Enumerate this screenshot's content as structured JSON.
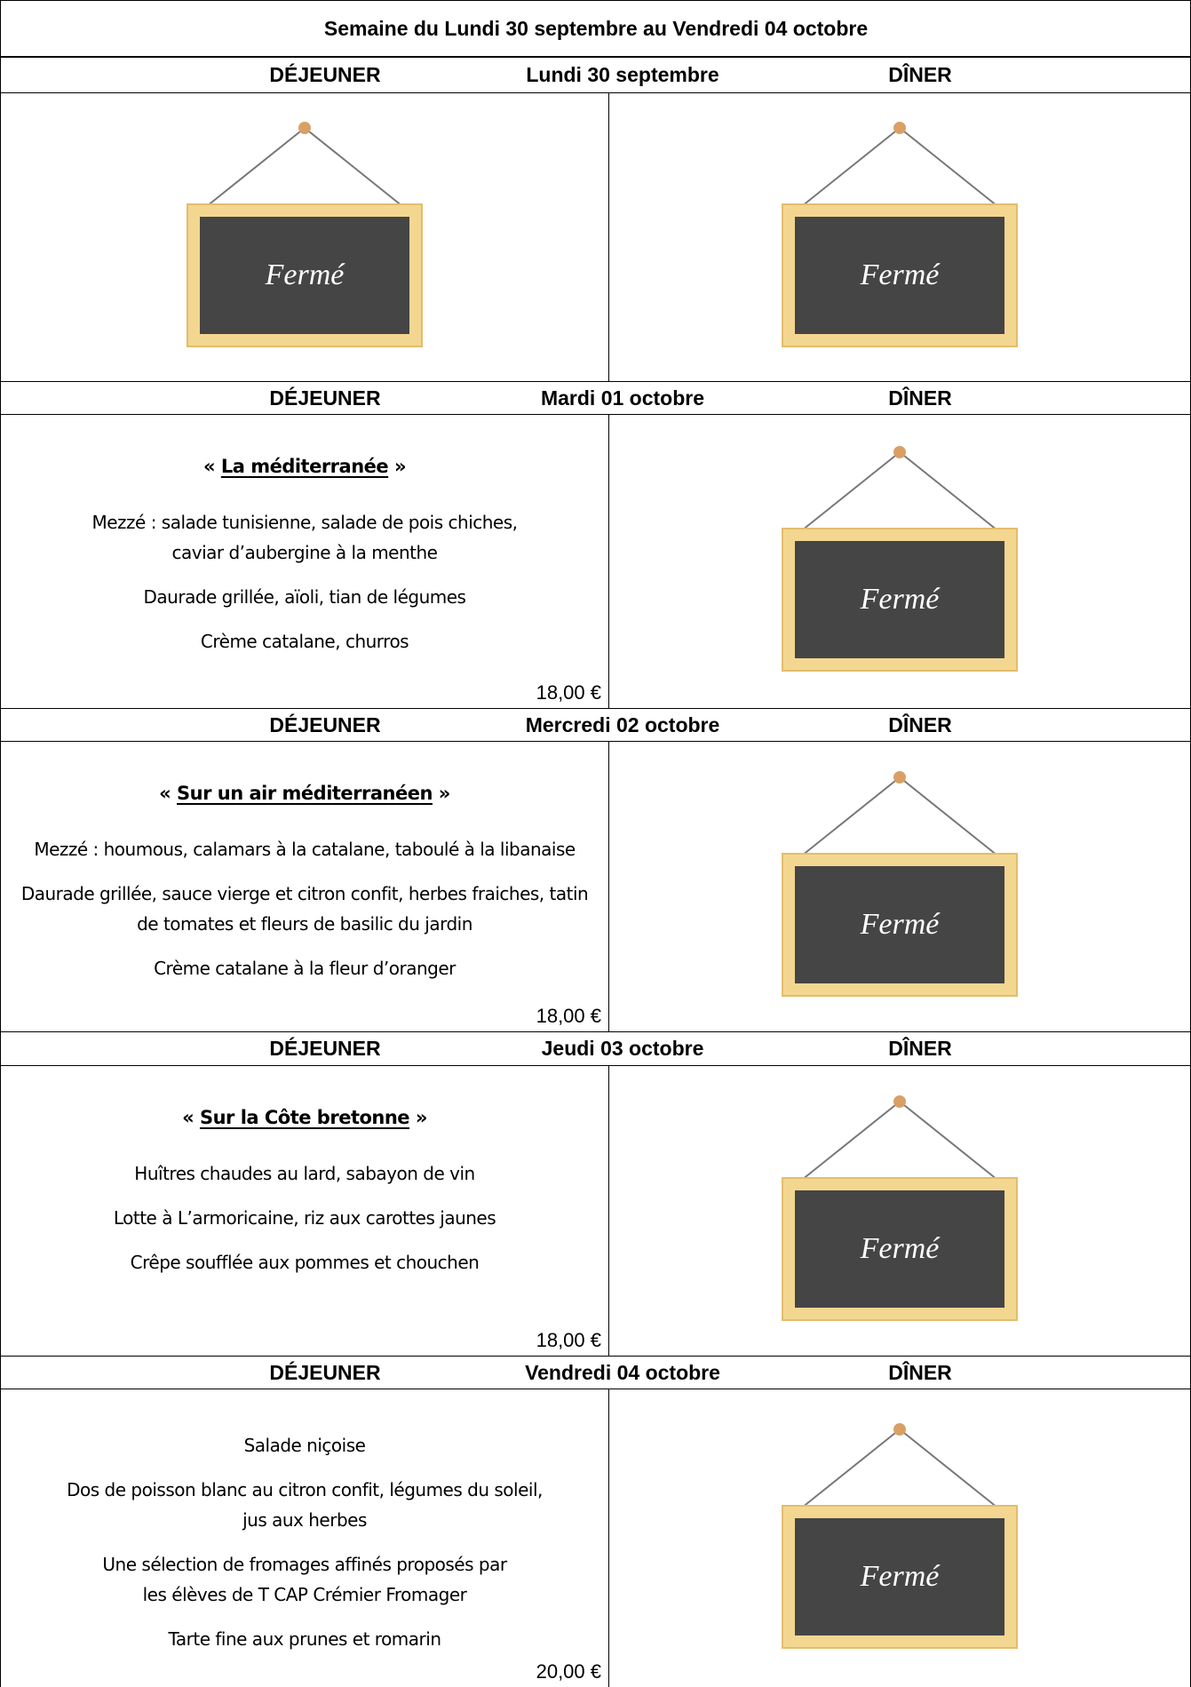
{
  "title": "Semaine du Lundi 30 septembre au Vendredi 04 octobre",
  "days": [
    {
      "lunch_label": "DÉJEUNER",
      "date": "Lundi 30 septembre",
      "dinner_label": "DÎNER",
      "lunch": {
        "closed": "Fermé"
      },
      "dinner": {
        "closed": "Fermé"
      }
    },
    {
      "lunch_label": "DÉJEUNER",
      "date": "Mardi 01 octobre",
      "dinner_label": "DÎNER",
      "lunch": {
        "title": [
          "«",
          "La méditerranée",
          "»"
        ],
        "items": [
          [
            "Mezzé : salade tunisienne, salade de pois chiches,",
            "caviar d’aubergine à la menthe"
          ],
          [
            "Daurade grillée, aïoli, tian de légumes"
          ],
          [
            "Crème catalane, churros"
          ]
        ],
        "price": "18,00 €"
      },
      "dinner": {
        "closed": "Fermé"
      }
    },
    {
      "lunch_label": "DÉJEUNER",
      "date": "Mercredi 02 octobre",
      "dinner_label": "DÎNER",
      "lunch": {
        "title": [
          "«",
          "Sur un air méditerranéen",
          "»"
        ],
        "items": [
          [
            "Mezzé : houmous, calamars à la catalane, taboulé à la libanaise"
          ],
          [
            "Daurade grillée, sauce vierge et citron confit, herbes fraiches, tatin",
            "de tomates et fleurs de basilic du jardin"
          ],
          [
            "Crème catalane à la fleur d’oranger"
          ]
        ],
        "price": "18,00 €"
      },
      "dinner": {
        "closed": "Fermé"
      }
    },
    {
      "lunch_label": "DÉJEUNER",
      "date": "Jeudi 03 octobre",
      "dinner_label": "DÎNER",
      "lunch": {
        "title": [
          "«",
          "Sur la Côte bretonne",
          "»"
        ],
        "items": [
          [
            "Huîtres chaudes au lard, sabayon de vin"
          ],
          [
            "Lotte à L’armoricaine, riz aux carottes jaunes"
          ],
          [
            "Crêpe soufflée aux pommes et chouchen"
          ]
        ],
        "price": "18,00 €"
      },
      "dinner": {
        "closed": "Fermé"
      }
    },
    {
      "lunch_label": "DÉJEUNER",
      "date": "Vendredi 04 octobre",
      "dinner_label": "DÎNER",
      "lunch": {
        "items": [
          [
            "Salade niçoise"
          ],
          [
            "Dos de poisson blanc au citron confit, légumes du soleil,",
            "jus aux herbes"
          ],
          [
            "Une sélection de fromages affinés proposés par",
            "les élèves de T CAP Crémier Fromager"
          ],
          [
            "Tarte fine aux prunes et romarin"
          ]
        ],
        "price": "20,00 €"
      },
      "dinner": {
        "closed": "Fermé"
      }
    }
  ]
}
